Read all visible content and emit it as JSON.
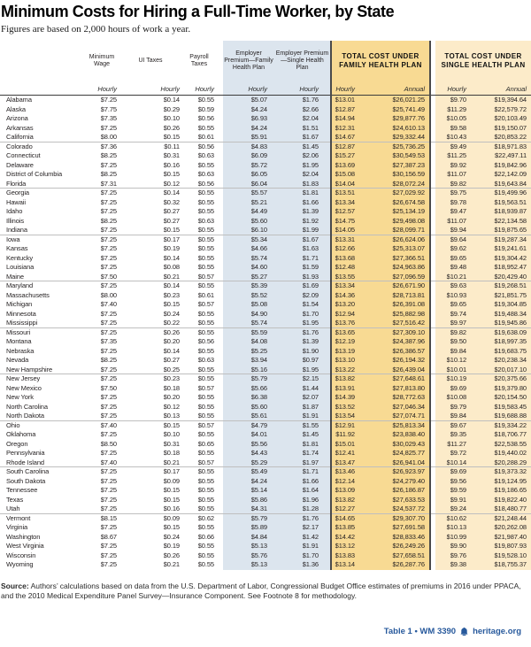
{
  "title": "Minimum Costs for Hiring a Full-Time Worker, by State",
  "subtitle": "Figures are based on 2,000 hours of work a year.",
  "table": {
    "headers": {
      "minimum_wage": "Minimum Wage",
      "ui_taxes": "UI Taxes",
      "payroll_taxes": "Payroll Taxes",
      "employer_premium_family": "Employer Premium—Family Health Plan",
      "employer_premium_single": "Employer Premium—Single Health Plan",
      "total_family": "TOTAL COST UNDER FAMILY HEALTH PLAN",
      "total_single": "TOTAL COST UNDER SINGLE HEALTH PLAN",
      "hourly": "Hourly",
      "annual": "Annual"
    },
    "columns": [
      "State",
      "Minimum Wage (Hourly)",
      "UI Taxes (Hourly)",
      "Payroll Taxes (Hourly)",
      "Employer Premium—Family Health Plan (Hourly)",
      "Employer Premium—Single Health Plan (Hourly)",
      "Total Cost Under Family Health Plan (Hourly)",
      "Total Cost Under Family Health Plan (Annual)",
      "Total Cost Under Single Health Plan (Hourly)",
      "Total Cost Under Single Health Plan (Annual)"
    ],
    "rows": [
      {
        "state": "Alabama",
        "v": [
          "$7.25",
          "$0.14",
          "$0.55",
          "$5.07",
          "$1.76",
          "$13.01",
          "$26,021.25",
          "$9.70",
          "$19,394.64"
        ]
      },
      {
        "state": "Alaska",
        "v": [
          "$7.75",
          "$0.29",
          "$0.59",
          "$4.24",
          "$2.66",
          "$12.87",
          "$25,741.49",
          "$11.29",
          "$22,579.72"
        ]
      },
      {
        "state": "Arizona",
        "v": [
          "$7.35",
          "$0.10",
          "$0.56",
          "$6.93",
          "$2.04",
          "$14.94",
          "$29,877.76",
          "$10.05",
          "$20,103.49"
        ]
      },
      {
        "state": "Arkansas",
        "v": [
          "$7.25",
          "$0.26",
          "$0.55",
          "$4.24",
          "$1.51",
          "$12.31",
          "$24,610.13",
          "$9.58",
          "$19,150.07"
        ]
      },
      {
        "state": "California",
        "v": [
          "$8.00",
          "$0.15",
          "$0.61",
          "$5.91",
          "$1.67",
          "$14.67",
          "$29,332.44",
          "$10.43",
          "$20,853.22"
        ]
      },
      {
        "state": "Colorado",
        "v": [
          "$7.36",
          "$0.11",
          "$0.56",
          "$4.83",
          "$1.45",
          "$12.87",
          "$25,736.25",
          "$9.49",
          "$18,971.83"
        ]
      },
      {
        "state": "Connecticut",
        "v": [
          "$8.25",
          "$0.31",
          "$0.63",
          "$6.09",
          "$2.06",
          "$15.27",
          "$30,549.53",
          "$11.25",
          "$22,497.11"
        ]
      },
      {
        "state": "Delaware",
        "v": [
          "$7.25",
          "$0.16",
          "$0.55",
          "$5.72",
          "$1.95",
          "$13.69",
          "$27,387.23",
          "$9.92",
          "$19,842.96"
        ]
      },
      {
        "state": "District of Columbia",
        "v": [
          "$8.25",
          "$0.15",
          "$0.63",
          "$6.05",
          "$2.04",
          "$15.08",
          "$30,156.59",
          "$11.07",
          "$22,142.09"
        ]
      },
      {
        "state": "Florida",
        "v": [
          "$7.31",
          "$0.12",
          "$0.56",
          "$6.04",
          "$1.83",
          "$14.04",
          "$28,072.24",
          "$9.82",
          "$19,643.84"
        ]
      },
      {
        "state": "Georgia",
        "v": [
          "$7.25",
          "$0.14",
          "$0.55",
          "$5.57",
          "$1.81",
          "$13.51",
          "$27,029.92",
          "$9.75",
          "$19,499.96"
        ]
      },
      {
        "state": "Hawaii",
        "v": [
          "$7.25",
          "$0.32",
          "$0.55",
          "$5.21",
          "$1.66",
          "$13.34",
          "$26,674.58",
          "$9.78",
          "$19,563.51"
        ]
      },
      {
        "state": "Idaho",
        "v": [
          "$7.25",
          "$0.27",
          "$0.55",
          "$4.49",
          "$1.39",
          "$12.57",
          "$25,134.19",
          "$9.47",
          "$18,939.87"
        ]
      },
      {
        "state": "Illinois",
        "v": [
          "$8.25",
          "$0.27",
          "$0.63",
          "$5.60",
          "$1.92",
          "$14.75",
          "$29,498.08",
          "$11.07",
          "$22,134.58"
        ]
      },
      {
        "state": "Indiana",
        "v": [
          "$7.25",
          "$0.15",
          "$0.55",
          "$6.10",
          "$1.99",
          "$14.05",
          "$28,099.71",
          "$9.94",
          "$19,875.65"
        ]
      },
      {
        "state": "Iowa",
        "v": [
          "$7.25",
          "$0.17",
          "$0.55",
          "$5.34",
          "$1.67",
          "$13.31",
          "$26,624.06",
          "$9.64",
          "$19,287.34"
        ]
      },
      {
        "state": "Kansas",
        "v": [
          "$7.25",
          "$0.19",
          "$0.55",
          "$4.66",
          "$1.63",
          "$12.66",
          "$25,313.07",
          "$9.62",
          "$19,241.61"
        ]
      },
      {
        "state": "Kentucky",
        "v": [
          "$7.25",
          "$0.14",
          "$0.55",
          "$5.74",
          "$1.71",
          "$13.68",
          "$27,366.51",
          "$9.65",
          "$19,304.42"
        ]
      },
      {
        "state": "Louisiana",
        "v": [
          "$7.25",
          "$0.08",
          "$0.55",
          "$4.60",
          "$1.59",
          "$12.48",
          "$24,963.86",
          "$9.48",
          "$18,952.47"
        ]
      },
      {
        "state": "Maine",
        "v": [
          "$7.50",
          "$0.21",
          "$0.57",
          "$5.27",
          "$1.93",
          "$13.55",
          "$27,096.59",
          "$10.21",
          "$20,429.40"
        ]
      },
      {
        "state": "Maryland",
        "v": [
          "$7.25",
          "$0.14",
          "$0.55",
          "$5.39",
          "$1.69",
          "$13.34",
          "$26,671.90",
          "$9.63",
          "$19,268.51"
        ]
      },
      {
        "state": "Massachusetts",
        "v": [
          "$8.00",
          "$0.23",
          "$0.61",
          "$5.52",
          "$2.09",
          "$14.36",
          "$28,713.81",
          "$10.93",
          "$21,851.75"
        ]
      },
      {
        "state": "Michigan",
        "v": [
          "$7.40",
          "$0.15",
          "$0.57",
          "$5.08",
          "$1.54",
          "$13.20",
          "$26,391.08",
          "$9.65",
          "$19,304.85"
        ]
      },
      {
        "state": "Minnesota",
        "v": [
          "$7.25",
          "$0.24",
          "$0.55",
          "$4.90",
          "$1.70",
          "$12.94",
          "$25,882.98",
          "$9.74",
          "$19,488.34"
        ]
      },
      {
        "state": "Mississippi",
        "v": [
          "$7.25",
          "$0.22",
          "$0.55",
          "$5.74",
          "$1.95",
          "$13.76",
          "$27,516.42",
          "$9.97",
          "$19,945.86"
        ]
      },
      {
        "state": "Missouri",
        "v": [
          "$7.25",
          "$0.26",
          "$0.55",
          "$5.59",
          "$1.76",
          "$13.65",
          "$27,309.10",
          "$9.82",
          "$19,638.09"
        ]
      },
      {
        "state": "Montana",
        "v": [
          "$7.35",
          "$0.20",
          "$0.56",
          "$4.08",
          "$1.39",
          "$12.19",
          "$24,387.96",
          "$9.50",
          "$18,997.35"
        ]
      },
      {
        "state": "Nebraska",
        "v": [
          "$7.25",
          "$0.14",
          "$0.55",
          "$5.25",
          "$1.90",
          "$13.19",
          "$26,386.57",
          "$9.84",
          "$19,683.75"
        ]
      },
      {
        "state": "Nevada",
        "v": [
          "$8.25",
          "$0.27",
          "$0.63",
          "$3.94",
          "$0.97",
          "$13.10",
          "$26,194.32",
          "$10.12",
          "$20,238.34"
        ]
      },
      {
        "state": "New Hampshire",
        "v": [
          "$7.25",
          "$0.25",
          "$0.55",
          "$5.16",
          "$1.95",
          "$13.22",
          "$26,439.04",
          "$10.01",
          "$20,017.10"
        ]
      },
      {
        "state": "New Jersey",
        "v": [
          "$7.25",
          "$0.23",
          "$0.55",
          "$5.79",
          "$2.15",
          "$13.82",
          "$27,648.61",
          "$10.19",
          "$20,375.66"
        ]
      },
      {
        "state": "New Mexico",
        "v": [
          "$7.50",
          "$0.18",
          "$0.57",
          "$5.66",
          "$1.44",
          "$13.91",
          "$27,813.80",
          "$9.69",
          "$19,379.80"
        ]
      },
      {
        "state": "New York",
        "v": [
          "$7.25",
          "$0.20",
          "$0.55",
          "$6.38",
          "$2.07",
          "$14.39",
          "$28,772.63",
          "$10.08",
          "$20,154.50"
        ]
      },
      {
        "state": "North Carolina",
        "v": [
          "$7.25",
          "$0.12",
          "$0.55",
          "$5.60",
          "$1.87",
          "$13.52",
          "$27,046.34",
          "$9.79",
          "$19,583.45"
        ]
      },
      {
        "state": "North Dakota",
        "v": [
          "$7.25",
          "$0.13",
          "$0.55",
          "$5.61",
          "$1.91",
          "$13.54",
          "$27,074.71",
          "$9.84",
          "$19,688.88"
        ]
      },
      {
        "state": "Ohio",
        "v": [
          "$7.40",
          "$0.15",
          "$0.57",
          "$4.79",
          "$1.55",
          "$12.91",
          "$25,813.34",
          "$9.67",
          "$19,334.22"
        ]
      },
      {
        "state": "Oklahoma",
        "v": [
          "$7.25",
          "$0.10",
          "$0.55",
          "$4.01",
          "$1.45",
          "$11.92",
          "$23,838.40",
          "$9.35",
          "$18,706.77"
        ]
      },
      {
        "state": "Oregon",
        "v": [
          "$8.50",
          "$0.31",
          "$0.65",
          "$5.56",
          "$1.81",
          "$15.01",
          "$30,029.43",
          "$11.27",
          "$22,538.55"
        ]
      },
      {
        "state": "Pennsylvania",
        "v": [
          "$7.25",
          "$0.18",
          "$0.55",
          "$4.43",
          "$1.74",
          "$12.41",
          "$24,825.77",
          "$9.72",
          "$19,440.02"
        ]
      },
      {
        "state": "Rhode Island",
        "v": [
          "$7.40",
          "$0.21",
          "$0.57",
          "$5.29",
          "$1.97",
          "$13.47",
          "$26,941.04",
          "$10.14",
          "$20,288.29"
        ]
      },
      {
        "state": "South Carolina",
        "v": [
          "$7.25",
          "$0.17",
          "$0.55",
          "$5.49",
          "$1.71",
          "$13.46",
          "$26,923.97",
          "$9.69",
          "$19,373.32"
        ]
      },
      {
        "state": "South Dakota",
        "v": [
          "$7.25",
          "$0.09",
          "$0.55",
          "$4.24",
          "$1.66",
          "$12.14",
          "$24,279.40",
          "$9.56",
          "$19,124.95"
        ]
      },
      {
        "state": "Tennessee",
        "v": [
          "$7.25",
          "$0.15",
          "$0.55",
          "$5.14",
          "$1.64",
          "$13.09",
          "$26,186.87",
          "$9.59",
          "$19,186.65"
        ]
      },
      {
        "state": "Texas",
        "v": [
          "$7.25",
          "$0.15",
          "$0.55",
          "$5.86",
          "$1.96",
          "$13.82",
          "$27,633.53",
          "$9.91",
          "$19,822.40"
        ]
      },
      {
        "state": "Utah",
        "v": [
          "$7.25",
          "$0.16",
          "$0.55",
          "$4.31",
          "$1.28",
          "$12.27",
          "$24,537.72",
          "$9.24",
          "$18,480.77"
        ]
      },
      {
        "state": "Vermont",
        "v": [
          "$8.15",
          "$0.09",
          "$0.62",
          "$5.79",
          "$1.76",
          "$14.65",
          "$29,307.70",
          "$10.62",
          "$21,248.44"
        ]
      },
      {
        "state": "Virginia",
        "v": [
          "$7.25",
          "$0.15",
          "$0.55",
          "$5.89",
          "$2.17",
          "$13.85",
          "$27,691.58",
          "$10.13",
          "$20,262.08"
        ]
      },
      {
        "state": "Washington",
        "v": [
          "$8.67",
          "$0.24",
          "$0.66",
          "$4.84",
          "$1.42",
          "$14.42",
          "$28,833.46",
          "$10.99",
          "$21,987.40"
        ]
      },
      {
        "state": "West Virginia",
        "v": [
          "$7.25",
          "$0.19",
          "$0.55",
          "$5.13",
          "$1.91",
          "$13.12",
          "$26,249.26",
          "$9.90",
          "$19,807.93"
        ]
      },
      {
        "state": "Wisconsin",
        "v": [
          "$7.25",
          "$0.26",
          "$0.55",
          "$5.76",
          "$1.70",
          "$13.83",
          "$27,658.51",
          "$9.76",
          "$19,528.10"
        ]
      },
      {
        "state": "Wyoming",
        "v": [
          "$7.25",
          "$0.21",
          "$0.55",
          "$5.13",
          "$1.36",
          "$13.14",
          "$26,287.76",
          "$9.38",
          "$18,755.37"
        ]
      }
    ]
  },
  "source": {
    "label": "Source:",
    "text": "Authors’ calculations based on data from the U.S. Department of Labor, Congressional Budget Office estimates of premiums in 2016 under PPACA, and the 2010 Medical Expenditure Panel Survey—Insurance Component. See Footnote 8 for methodology."
  },
  "footer": {
    "table_ref": "Table 1 • WM 3390",
    "site": "heritage.org"
  },
  "colors": {
    "premium_section_bg": "#dce5ee",
    "family_total_bg": "#f8da93",
    "single_total_bg": "#fcebc9",
    "section_border": "#4a4a4a",
    "accent_blue": "#27599c"
  }
}
